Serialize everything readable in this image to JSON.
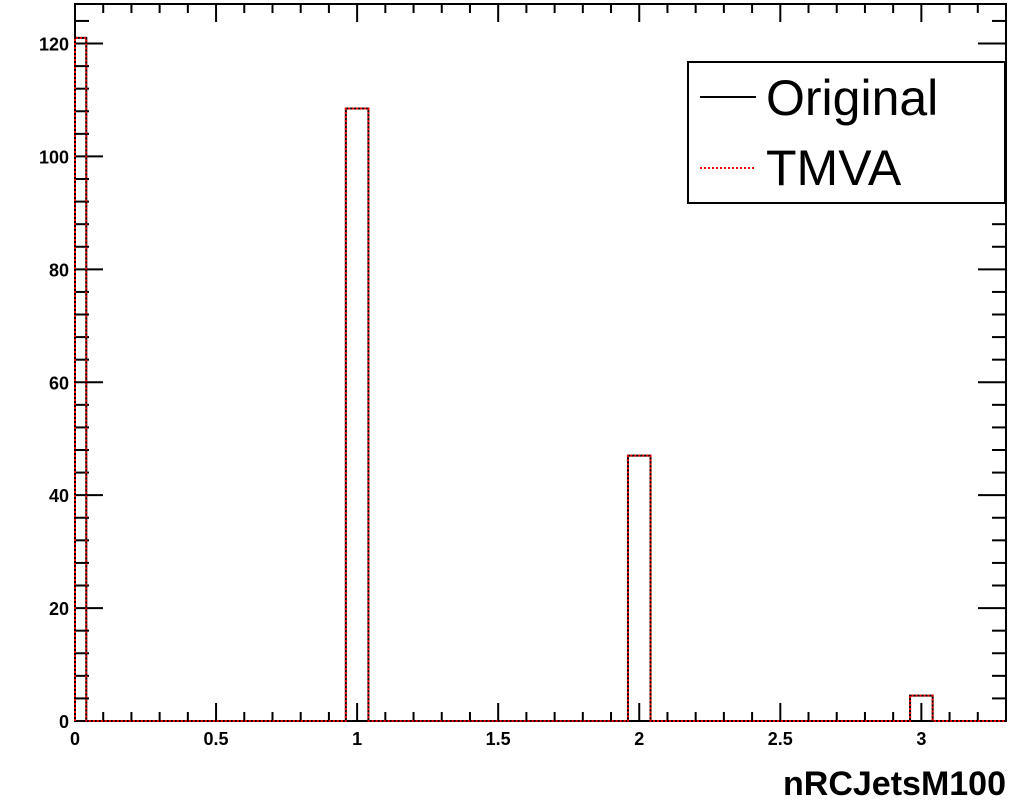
{
  "chart_data": {
    "type": "bar",
    "title": "",
    "xlabel": "nRCJetsM100",
    "ylabel": "",
    "xlim": [
      0,
      3.3
    ],
    "ylim": [
      0,
      127
    ],
    "grid": false,
    "legend_position": "top-right",
    "x_tick_labels": [
      "0",
      "0.5",
      "1",
      "1.5",
      "2",
      "2.5",
      "3"
    ],
    "y_tick_labels": [
      "0",
      "20",
      "40",
      "60",
      "80",
      "100",
      "120"
    ],
    "bins": [
      {
        "x": 0,
        "value": 121
      },
      {
        "x": 1,
        "value": 108.5
      },
      {
        "x": 2,
        "value": 47
      },
      {
        "x": 3,
        "value": 4.5
      }
    ],
    "series": [
      {
        "name": "Original",
        "color": "#000000",
        "style": "solid",
        "values": [
          121,
          108.5,
          47,
          4.5
        ]
      },
      {
        "name": "TMVA",
        "color": "#ff0000",
        "style": "dotted",
        "values": [
          121,
          108.5,
          47,
          4.5
        ]
      }
    ]
  }
}
